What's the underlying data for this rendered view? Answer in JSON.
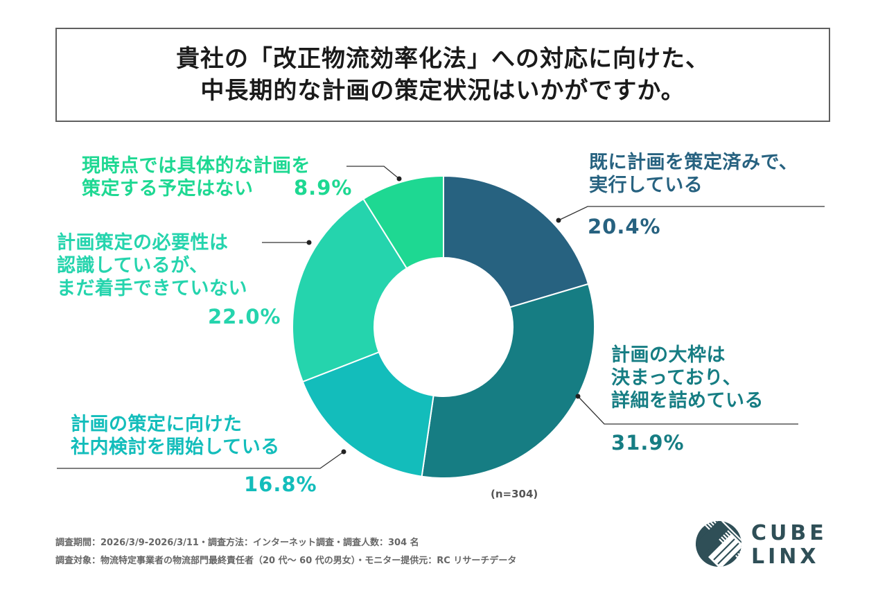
{
  "title": {
    "line1": "貴社の「改正物流効率化法」への対応に向けた、",
    "line2": "中長期的な計画の策定状況はいかがですか。"
  },
  "chart_data": {
    "type": "pie",
    "subtype": "donut",
    "sample_size_label": "(n=304)",
    "start_angle_deg": 0,
    "direction": "clockwise",
    "categories": [
      "既に計画を策定済みで、実行している",
      "計画の大枠は決まっており、詳細を詰めている",
      "計画の策定に向けた社内検討を開始している",
      "計画策定の必要性は認識しているが、まだ着手できていない",
      "現時点では具体的な計画を策定する予定はない"
    ],
    "label_lines": [
      [
        "既に計画を策定済みで、",
        "実行している"
      ],
      [
        "計画の大枠は",
        "決まっており、",
        "詳細を詰めている"
      ],
      [
        "計画の策定に向けた",
        "社内検討を開始している"
      ],
      [
        "計画策定の必要性は",
        "認識しているが、",
        "まだ着手できていない"
      ],
      [
        "現時点では具体的な計画を",
        "策定する予定はない"
      ]
    ],
    "values": [
      20.4,
      31.9,
      16.8,
      22.0,
      8.9
    ],
    "value_labels": [
      "20.4%",
      "31.9%",
      "16.8%",
      "22.0%",
      "8.9%"
    ],
    "colors": [
      "#276280",
      "#167d83",
      "#13bdbb",
      "#25d4ad",
      "#1ed892"
    ]
  },
  "footer": {
    "line1": "調査期間：2026/3/9-2026/3/11・調査方法：インターネット調査・調査人数：304 名",
    "line2": "調査対象：物流特定事業者の物流部門最終責任者（20 代～ 60 代の男女）・モニター提供元：RC リサーチデータ"
  },
  "logo": {
    "name": "logo-icon",
    "top_text": "CUBE",
    "bottom_text": "LINX",
    "color": "#2f4f57"
  }
}
